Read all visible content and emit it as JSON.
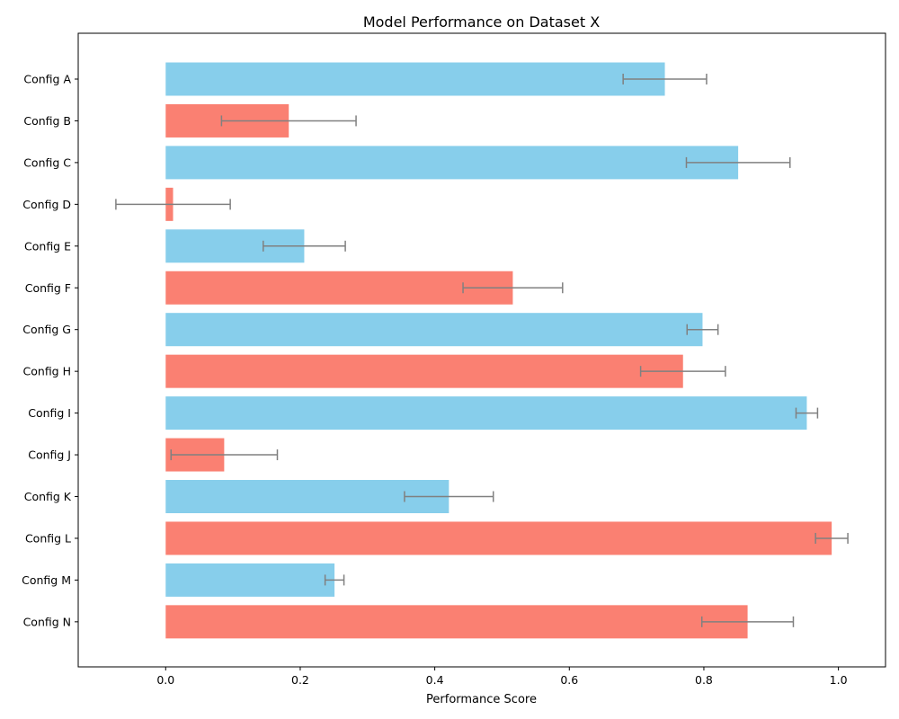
{
  "chart_data": {
    "type": "bar",
    "orientation": "horizontal",
    "title": "Model Performance on Dataset X",
    "xlabel": "Performance Score",
    "ylabel": "",
    "xlim": [
      -0.13,
      1.07
    ],
    "x_ticks": [
      0.0,
      0.2,
      0.4,
      0.6,
      0.8,
      1.0
    ],
    "x_tick_labels": [
      "0.0",
      "0.2",
      "0.4",
      "0.6",
      "0.8",
      "1.0"
    ],
    "grid": false,
    "legend": "none",
    "categories": [
      "Config A",
      "Config B",
      "Config C",
      "Config D",
      "Config E",
      "Config F",
      "Config G",
      "Config H",
      "Config I",
      "Config J",
      "Config K",
      "Config L",
      "Config M",
      "Config N"
    ],
    "values": [
      0.742,
      0.183,
      0.851,
      0.011,
      0.206,
      0.516,
      0.798,
      0.769,
      0.953,
      0.087,
      0.421,
      0.99,
      0.251,
      0.865
    ],
    "errors": [
      0.062,
      0.1,
      0.077,
      0.085,
      0.061,
      0.074,
      0.023,
      0.063,
      0.016,
      0.079,
      0.066,
      0.024,
      0.014,
      0.068
    ],
    "colors": [
      "#87CEEB",
      "#FA8072",
      "#87CEEB",
      "#FA8072",
      "#87CEEB",
      "#FA8072",
      "#87CEEB",
      "#FA8072",
      "#87CEEB",
      "#FA8072",
      "#87CEEB",
      "#FA8072",
      "#87CEEB",
      "#FA8072"
    ],
    "error_color": "#808080"
  }
}
